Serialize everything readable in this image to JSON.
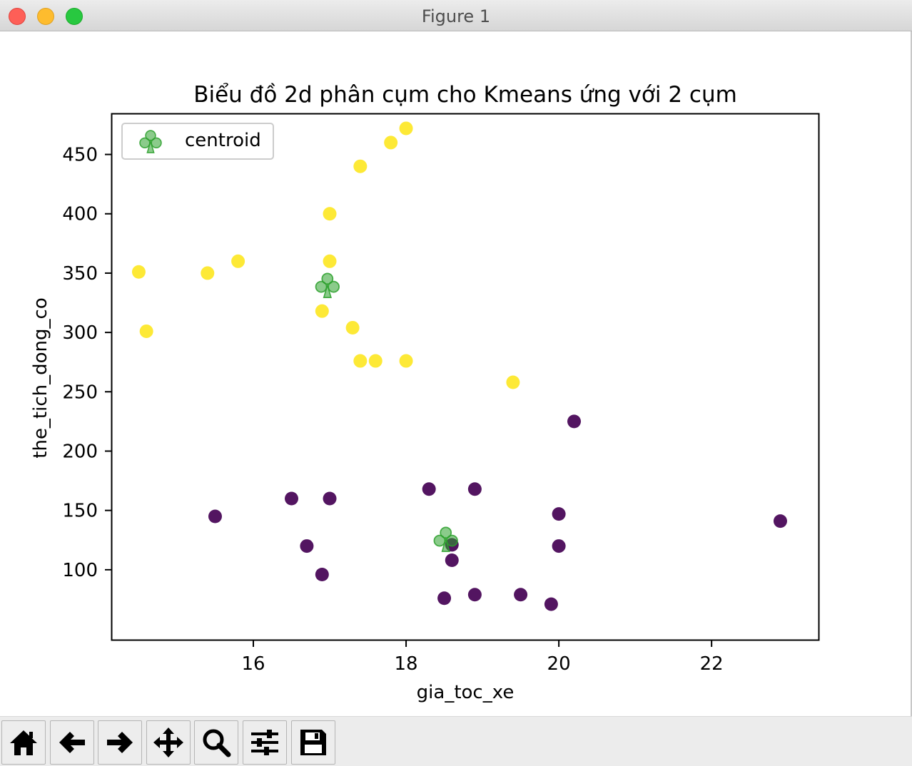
{
  "window": {
    "title": "Figure 1"
  },
  "toolbar": {
    "buttons": [
      {
        "name": "home-icon"
      },
      {
        "name": "back-arrow-icon"
      },
      {
        "name": "forward-arrow-icon"
      },
      {
        "name": "pan-move-icon"
      },
      {
        "name": "zoom-magnifier-icon"
      },
      {
        "name": "configure-subplots-icon"
      },
      {
        "name": "save-floppy-icon"
      }
    ]
  },
  "chart_data": {
    "type": "scatter",
    "title": "Biểu đồ 2d phân cụm cho Kmeans ứng với 2 cụm",
    "xlabel": "gia_toc_xe",
    "ylabel": "the_tich_dong_co",
    "xlim": [
      14.15,
      23.4
    ],
    "ylim": [
      41,
      484
    ],
    "xticks": [
      16,
      18,
      20,
      22
    ],
    "yticks": [
      100,
      150,
      200,
      250,
      300,
      350,
      400,
      450
    ],
    "grid": false,
    "legend": {
      "position": "upper-left",
      "entries": [
        "centroid"
      ]
    },
    "colors": {
      "cluster_0": "#440154",
      "cluster_1": "#fde725",
      "centroid": "#2ca02c"
    },
    "clusters": [
      {
        "points": [
          [
            15.5,
            145
          ],
          [
            16.5,
            160
          ],
          [
            17.0,
            160
          ],
          [
            16.7,
            120
          ],
          [
            16.9,
            96
          ],
          [
            18.3,
            168
          ],
          [
            18.9,
            168
          ],
          [
            18.6,
            121
          ],
          [
            18.6,
            108
          ],
          [
            18.5,
            76
          ],
          [
            18.9,
            79
          ],
          [
            19.5,
            79
          ],
          [
            19.9,
            71
          ],
          [
            20.0,
            147
          ],
          [
            20.0,
            120
          ],
          [
            20.2,
            225
          ],
          [
            22.9,
            141
          ]
        ]
      },
      {
        "points": [
          [
            14.5,
            351
          ],
          [
            14.6,
            301
          ],
          [
            15.4,
            350
          ],
          [
            15.8,
            360
          ],
          [
            16.9,
            318
          ],
          [
            17.0,
            360
          ],
          [
            17.0,
            400
          ],
          [
            17.3,
            304
          ],
          [
            17.4,
            276
          ],
          [
            17.6,
            276
          ],
          [
            18.0,
            276
          ],
          [
            17.4,
            440
          ],
          [
            17.8,
            460
          ],
          [
            18.0,
            472
          ],
          [
            19.4,
            258
          ]
        ]
      }
    ],
    "centroids": [
      [
        16.97,
        340
      ],
      [
        18.52,
        126
      ]
    ]
  }
}
